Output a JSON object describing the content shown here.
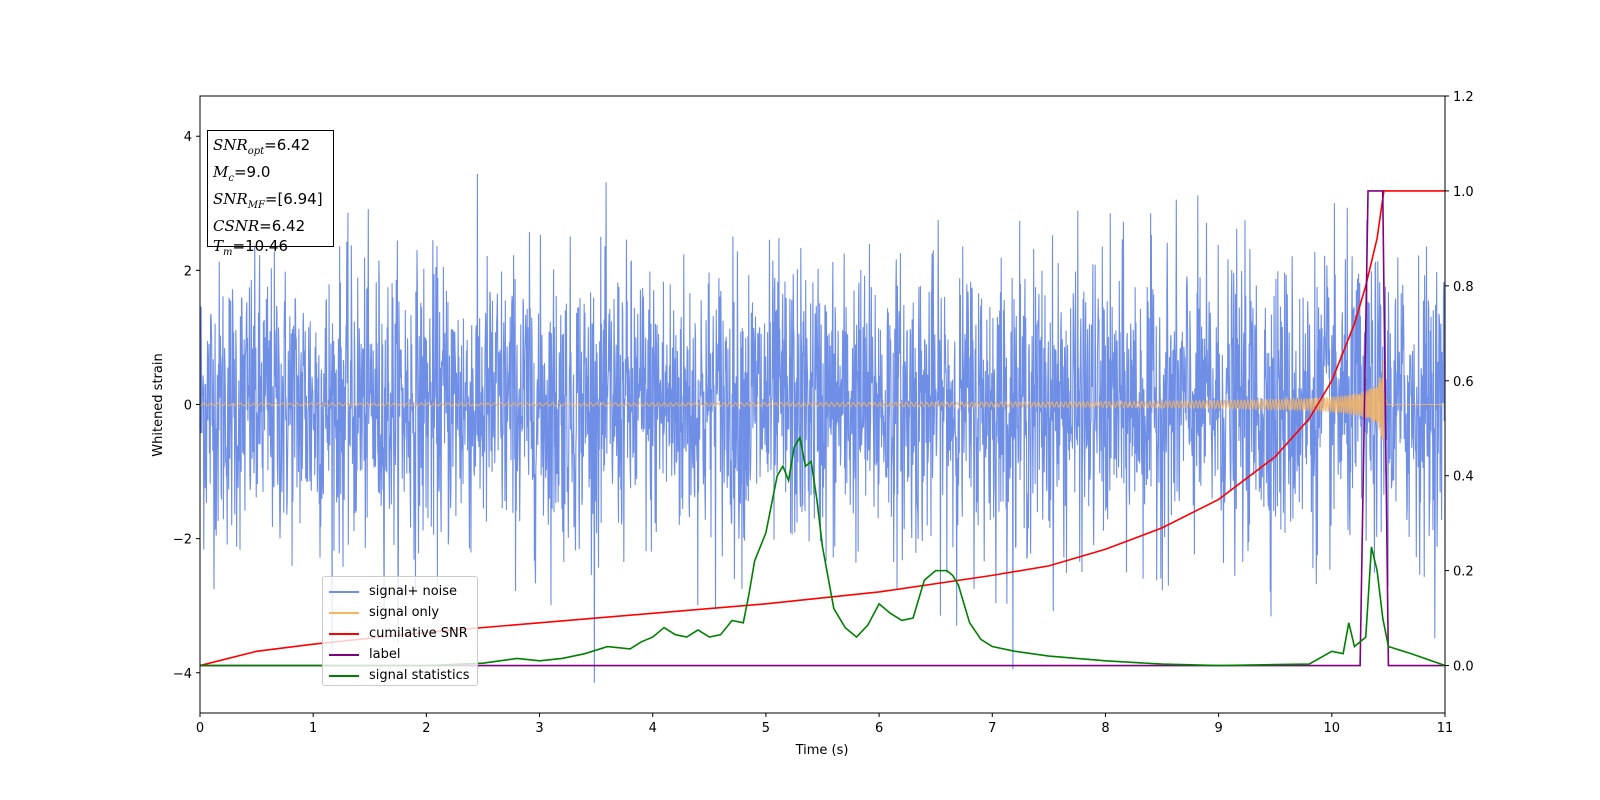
{
  "chart_data": {
    "type": "line",
    "xlabel": "Time (s)",
    "ylabel": "Whitened strain",
    "xlim": [
      0,
      11
    ],
    "ylim_left": [
      -4.6,
      4.6
    ],
    "ylim_right": [
      -0.1,
      1.2
    ],
    "x_ticks": [
      "0",
      "1",
      "2",
      "3",
      "4",
      "5",
      "6",
      "7",
      "8",
      "9",
      "10",
      "11"
    ],
    "y_ticks_left": [
      "−4",
      "−2",
      "0",
      "2",
      "4"
    ],
    "y_ticks_right": [
      "0.0",
      "0.2",
      "0.4",
      "0.6",
      "0.8",
      "1.0",
      "1.2"
    ],
    "grid": false,
    "legend_position": "lower-left",
    "info_box": {
      "snr_opt": "=6.42",
      "mc": "=9.0",
      "snr_mf": "=[6.94]",
      "csnr": "=6.42",
      "tm": "=10.46"
    },
    "series": [
      {
        "name": "signal+ noise",
        "color": "#6f8fe6",
        "axis": "left",
        "noise_std": 1.0,
        "noise_peak": 4.15
      },
      {
        "name": "signal only",
        "color": "#f5b461",
        "axis": "left",
        "merger_time": 10.46,
        "peak_amplitude": 0.7
      },
      {
        "name": "cumilative SNR",
        "color": "#ff0000",
        "axis": "right",
        "x": [
          0,
          0.5,
          1,
          2,
          3,
          4,
          5,
          6,
          7,
          7.5,
          8,
          8.5,
          9,
          9.5,
          9.8,
          10,
          10.2,
          10.3,
          10.4,
          10.46,
          10.5,
          11
        ],
        "y": [
          0.0,
          0.03,
          0.045,
          0.07,
          0.09,
          0.11,
          0.13,
          0.155,
          0.19,
          0.21,
          0.245,
          0.29,
          0.35,
          0.44,
          0.52,
          0.6,
          0.72,
          0.8,
          0.9,
          1.0,
          1.0,
          1.0
        ]
      },
      {
        "name": "label",
        "color": "#800080",
        "axis": "right",
        "x": [
          0,
          10.25,
          10.32,
          10.45,
          10.5,
          11
        ],
        "y": [
          0,
          0,
          1.0,
          1.0,
          0,
          0
        ]
      },
      {
        "name": "signal statistics",
        "color": "#008000",
        "axis": "right",
        "x": [
          0,
          1,
          2,
          2.5,
          2.8,
          3.0,
          3.2,
          3.4,
          3.6,
          3.8,
          3.9,
          4.0,
          4.1,
          4.2,
          4.3,
          4.4,
          4.5,
          4.6,
          4.7,
          4.8,
          4.85,
          4.9,
          5.0,
          5.1,
          5.15,
          5.2,
          5.25,
          5.3,
          5.35,
          5.4,
          5.45,
          5.5,
          5.6,
          5.7,
          5.8,
          5.9,
          6.0,
          6.1,
          6.2,
          6.3,
          6.4,
          6.5,
          6.6,
          6.65,
          6.7,
          6.8,
          6.9,
          7.0,
          7.2,
          7.5,
          8.0,
          8.5,
          9.0,
          9.5,
          9.8,
          10.0,
          10.1,
          10.15,
          10.2,
          10.3,
          10.35,
          10.4,
          10.45,
          10.5,
          10.7,
          11.0
        ],
        "y": [
          0.0,
          0.0,
          0.0,
          0.005,
          0.015,
          0.01,
          0.015,
          0.025,
          0.04,
          0.035,
          0.05,
          0.06,
          0.08,
          0.065,
          0.06,
          0.075,
          0.06,
          0.065,
          0.095,
          0.09,
          0.15,
          0.22,
          0.28,
          0.4,
          0.42,
          0.39,
          0.46,
          0.48,
          0.42,
          0.43,
          0.35,
          0.25,
          0.12,
          0.08,
          0.06,
          0.085,
          0.13,
          0.11,
          0.095,
          0.1,
          0.18,
          0.2,
          0.2,
          0.19,
          0.17,
          0.09,
          0.055,
          0.04,
          0.03,
          0.02,
          0.01,
          0.003,
          0.0,
          0.002,
          0.003,
          0.03,
          0.025,
          0.09,
          0.04,
          0.06,
          0.25,
          0.2,
          0.1,
          0.04,
          0.025,
          0.0
        ]
      }
    ]
  }
}
